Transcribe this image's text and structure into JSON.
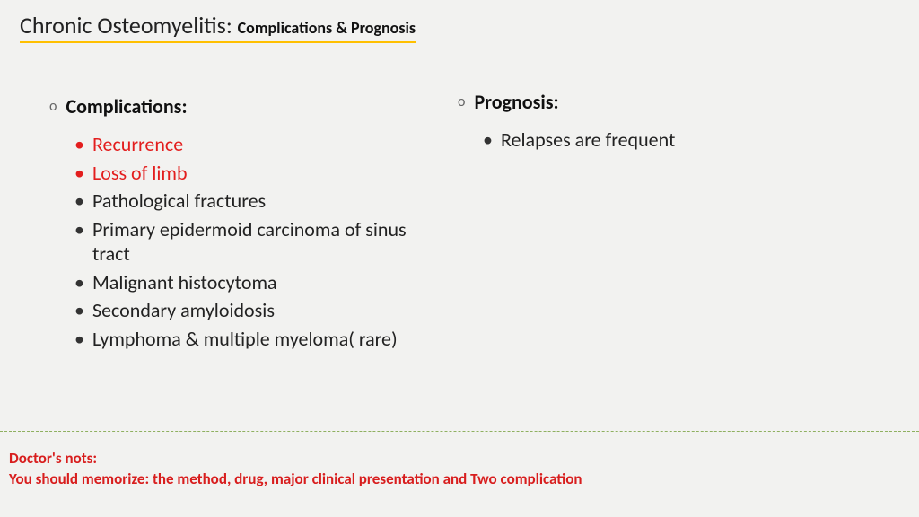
{
  "title": {
    "main": "Chronic Osteomyelitis",
    "sub": "Complications & Prognosis"
  },
  "left": {
    "heading": "Complications:",
    "items": [
      {
        "text": "Recurrence",
        "emphasis": true
      },
      {
        "text": "Loss of limb",
        "emphasis": true
      },
      {
        "text": "Pathological fractures",
        "emphasis": false
      },
      {
        "text": "Primary epidermoid carcinoma of sinus tract",
        "emphasis": false
      },
      {
        "text": "Malignant histocytoma",
        "emphasis": false
      },
      {
        "text": "Secondary amyloidosis",
        "emphasis": false
      },
      {
        "text": "Lymphoma & multiple myeloma( rare)",
        "emphasis": false
      }
    ]
  },
  "right": {
    "heading": "Prognosis:",
    "items": [
      {
        "text": "Relapses are frequent",
        "emphasis": false
      }
    ]
  },
  "footer": {
    "line1": "Doctor's nots:",
    "line2": "You should memorize:  the method, drug, major clinical presentation and Two complication"
  },
  "colors": {
    "background": "#f2f2f0",
    "underline": "#ffc000",
    "emphasis_text": "#e31e1e",
    "body_text": "#222222",
    "divider": "#8fb060",
    "footer_text": "#d81e1e"
  }
}
